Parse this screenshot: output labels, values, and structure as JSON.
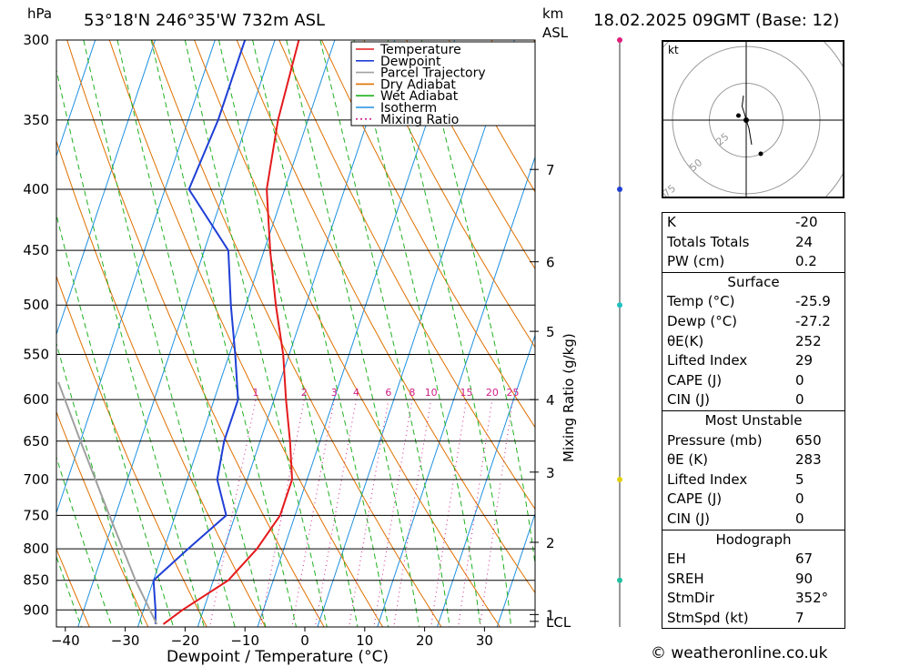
{
  "header": {
    "location": "53°18'N  246°35'W  732m  ASL",
    "datetime": "18.02.2025  09GMT  (Base: 12)",
    "unit_hpa": "hPa",
    "unit_km": "km",
    "unit_asl": "ASL"
  },
  "legend": [
    {
      "label": "Temperature",
      "color": "#e41a1c",
      "style": "solid"
    },
    {
      "label": "Dewpoint",
      "color": "#1f3fd6",
      "style": "solid"
    },
    {
      "label": "Parcel Trajectory",
      "color": "#a0a0a0",
      "style": "solid"
    },
    {
      "label": "Dry Adiabat",
      "color": "#e07000",
      "style": "solid"
    },
    {
      "label": "Wet Adiabat",
      "color": "#20b020",
      "style": "solid"
    },
    {
      "label": "Isotherm",
      "color": "#1e90e0",
      "style": "solid"
    },
    {
      "label": "Mixing Ratio",
      "color": "#d0208a",
      "style": "dotted"
    }
  ],
  "chart_data": {
    "type": "line",
    "xlabel": "Dewpoint / Temperature (°C)",
    "ylabel": "hPa",
    "x_ticks": [
      -40,
      -30,
      -20,
      -10,
      0,
      10,
      20,
      30
    ],
    "pressure_ticks": [
      300,
      350,
      400,
      450,
      500,
      550,
      600,
      650,
      700,
      750,
      800,
      850,
      900
    ],
    "pressure_range": [
      300,
      930
    ],
    "skew_per_log_p": 180,
    "km_axis": {
      "label": "Mixing Ratio (g/kg)",
      "ticks": [
        {
          "label": "7",
          "p": 385
        },
        {
          "label": "6",
          "p": 460
        },
        {
          "label": "5",
          "p": 526
        },
        {
          "label": "4",
          "p": 600
        },
        {
          "label": "3",
          "p": 690
        },
        {
          "label": "2",
          "p": 790
        },
        {
          "label": "1",
          "p": 908
        },
        {
          "label": "LCL",
          "p": 920
        }
      ]
    },
    "mixing_ratio_labels": [
      1,
      2,
      3,
      4,
      6,
      8,
      10,
      15,
      20,
      25
    ],
    "series": [
      {
        "name": "Temperature",
        "points": [
          {
            "p": 925,
            "t": -25.9
          },
          {
            "p": 900,
            "t": -23.5
          },
          {
            "p": 850,
            "t": -17.5
          },
          {
            "p": 800,
            "t": -14.5
          },
          {
            "p": 750,
            "t": -12.5
          },
          {
            "p": 700,
            "t": -12.5
          },
          {
            "p": 650,
            "t": -15.0
          },
          {
            "p": 600,
            "t": -18.0
          },
          {
            "p": 550,
            "t": -21.0
          },
          {
            "p": 500,
            "t": -25.0
          },
          {
            "p": 450,
            "t": -29.0
          },
          {
            "p": 400,
            "t": -33.0
          },
          {
            "p": 350,
            "t": -35.0
          },
          {
            "p": 300,
            "t": -36.0
          }
        ]
      },
      {
        "name": "Dewpoint",
        "points": [
          {
            "p": 925,
            "t": -27.2
          },
          {
            "p": 900,
            "t": -28.0
          },
          {
            "p": 850,
            "t": -30.0
          },
          {
            "p": 800,
            "t": -26.0
          },
          {
            "p": 750,
            "t": -21.5
          },
          {
            "p": 700,
            "t": -25.0
          },
          {
            "p": 650,
            "t": -26.0
          },
          {
            "p": 600,
            "t": -26.0
          },
          {
            "p": 550,
            "t": -29.0
          },
          {
            "p": 500,
            "t": -32.5
          },
          {
            "p": 450,
            "t": -36.0
          },
          {
            "p": 400,
            "t": -46.0
          },
          {
            "p": 350,
            "t": -45.0
          },
          {
            "p": 300,
            "t": -45.0
          }
        ]
      },
      {
        "name": "Parcel Trajectory",
        "points": [
          {
            "p": 925,
            "t": -27.0
          },
          {
            "p": 850,
            "t": -33.0
          },
          {
            "p": 750,
            "t": -41.0
          },
          {
            "p": 650,
            "t": -50.0
          },
          {
            "p": 580,
            "t": -57.0
          }
        ]
      }
    ]
  },
  "hodograph": {
    "unit": "kt",
    "rings": [
      "25",
      "50",
      "75"
    ],
    "trace_kt": [
      [
        -2,
        18
      ],
      [
        -3,
        10
      ],
      [
        -1,
        4
      ],
      [
        0,
        0
      ],
      [
        2,
        -6
      ],
      [
        3,
        -12
      ],
      [
        4,
        -18
      ]
    ]
  },
  "indices": [
    {
      "label": "K",
      "value": "-20"
    },
    {
      "label": "Totals Totals",
      "value": "24"
    },
    {
      "label": "PW (cm)",
      "value": "0.2"
    }
  ],
  "surface": {
    "title": "Surface",
    "rows": [
      {
        "label": "Temp (°C)",
        "value": "-25.9"
      },
      {
        "label": "Dewp (°C)",
        "value": "-27.2"
      },
      {
        "label": "θE(K)",
        "value": "252"
      },
      {
        "label": "Lifted Index",
        "value": "29"
      },
      {
        "label": "CAPE (J)",
        "value": "0"
      },
      {
        "label": "CIN (J)",
        "value": "0"
      }
    ]
  },
  "most_unstable": {
    "title": "Most Unstable",
    "rows": [
      {
        "label": "Pressure (mb)",
        "value": "650"
      },
      {
        "label": "θE (K)",
        "value": "283"
      },
      {
        "label": "Lifted Index",
        "value": "5"
      },
      {
        "label": "CAPE (J)",
        "value": "0"
      },
      {
        "label": "CIN (J)",
        "value": "0"
      }
    ]
  },
  "hodograph_stats": {
    "title": "Hodograph",
    "rows": [
      {
        "label": "EH",
        "value": "67"
      },
      {
        "label": "SREH",
        "value": "90"
      },
      {
        "label": "StmDir",
        "value": "352°"
      },
      {
        "label": "StmSpd (kt)",
        "value": "7"
      }
    ]
  },
  "credit": "© weatheronline.co.uk"
}
